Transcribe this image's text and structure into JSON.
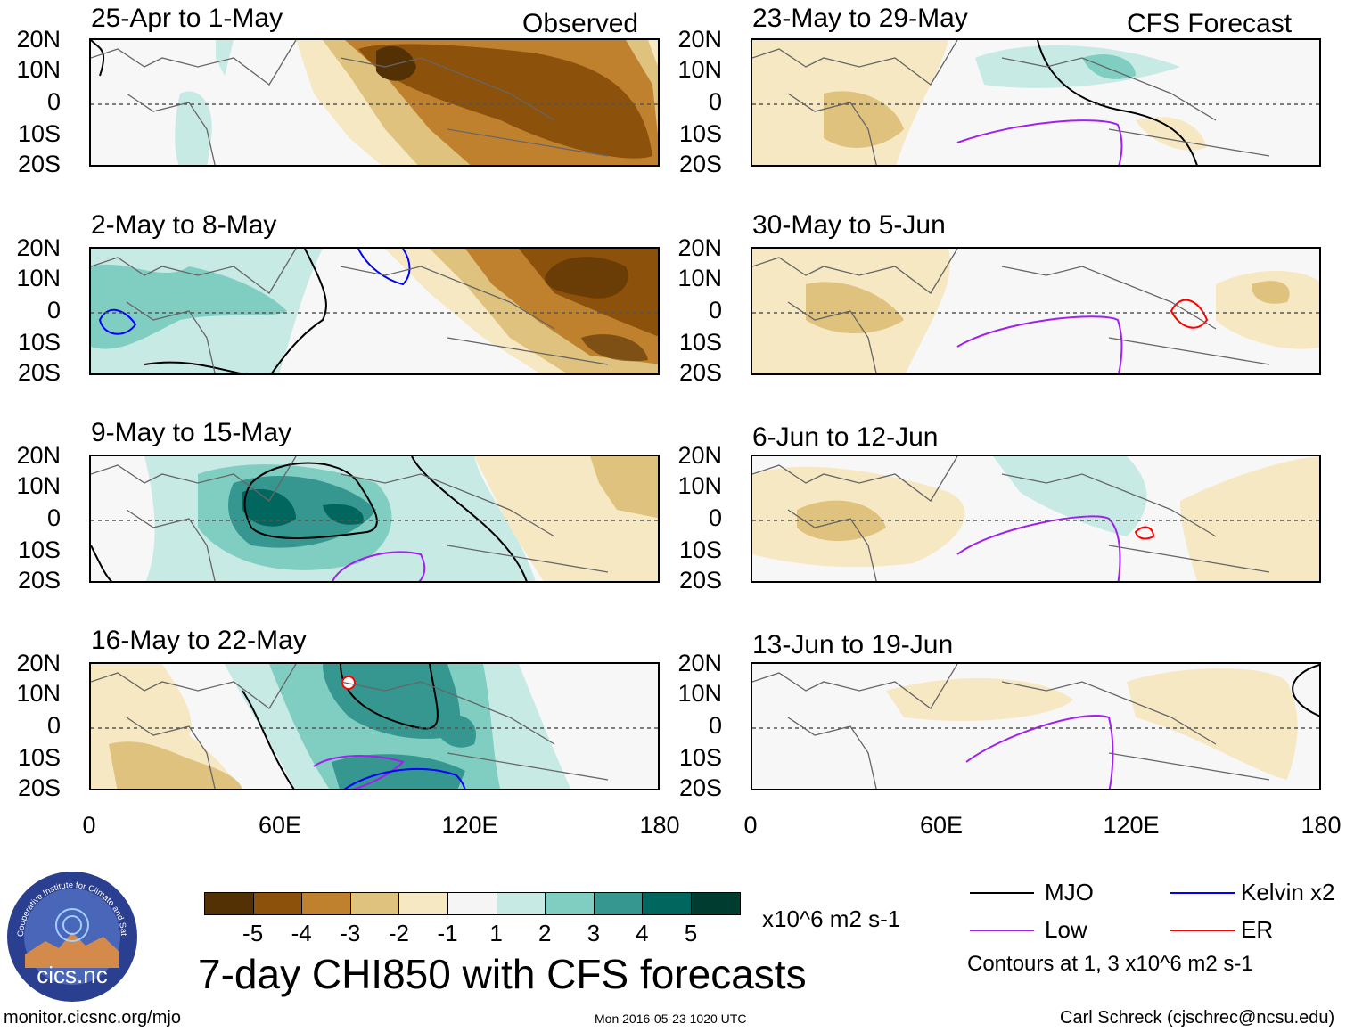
{
  "title": "7-day CHI850 with CFS forecasts",
  "header_left": "Observed",
  "header_right": "CFS Forecast",
  "panels_left": [
    {
      "period": "25-Apr to 1-May"
    },
    {
      "period": "2-May to 8-May"
    },
    {
      "period": "9-May to 15-May"
    },
    {
      "period": "16-May to 22-May"
    }
  ],
  "panels_right": [
    {
      "period": "23-May to 29-May"
    },
    {
      "period": "30-May to 5-Jun"
    },
    {
      "period": "6-Jun to 12-Jun"
    },
    {
      "period": "13-Jun to 19-Jun"
    }
  ],
  "lat_labels": [
    "20N",
    "10N",
    "0",
    "10S",
    "20S"
  ],
  "lon_labels": [
    "0",
    "60E",
    "120E",
    "180"
  ],
  "colorbar": {
    "labels": [
      "-5",
      "-4",
      "-3",
      "-2",
      "-1",
      "1",
      "2",
      "3",
      "4",
      "5"
    ],
    "colors": [
      "#543005",
      "#8c510a",
      "#bf812d",
      "#dfc27d",
      "#f6e8c3",
      "#f5f5f5",
      "#c7eae5",
      "#80cdc1",
      "#35978f",
      "#01665e",
      "#003c30"
    ],
    "units": "x10^6 m2 s-1"
  },
  "legend": {
    "mjo": "MJO",
    "low": "Low",
    "kelvin": "Kelvin x2",
    "er": "ER",
    "note": "Contours at 1, 3 x10^6 m2 s-1",
    "colors": {
      "mjo": "#000000",
      "low": "#a020f0",
      "kelvin": "#0000ff",
      "er": "#ff0000"
    }
  },
  "footer": {
    "site": "monitor.cicsnc.org/mjo",
    "timestamp": "Mon 2016-05-23 1020 UTC",
    "author": "Carl Schreck (cjschrec@ncsu.edu)"
  },
  "logo": {
    "text": "cics.nc",
    "ring_text": "Cooperative Institute for Climate and Satellites"
  }
}
